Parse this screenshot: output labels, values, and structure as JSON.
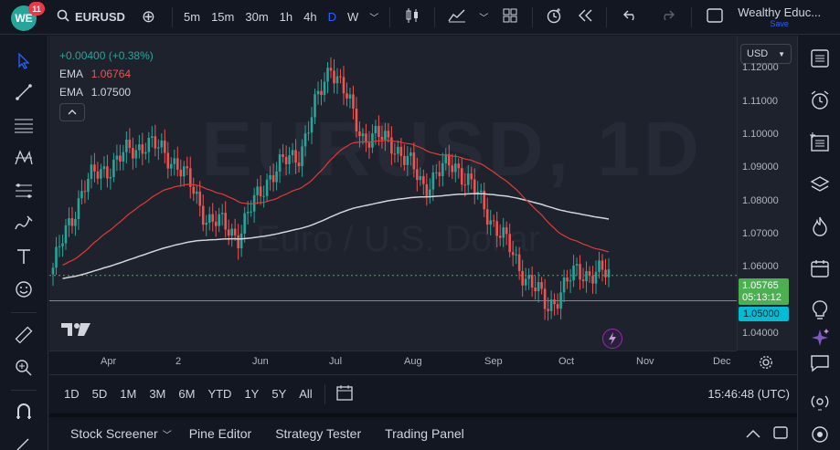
{
  "topbar": {
    "badge": "11",
    "logo": "WE",
    "symbol": "EURUSD",
    "intervals": [
      "5m",
      "15m",
      "30m",
      "1h",
      "4h",
      "D",
      "W"
    ],
    "active_interval": "D",
    "account_name": "Wealthy Educ...",
    "save_label": "Save"
  },
  "legend": {
    "change": "+0.00400 (+0.38%)",
    "ema1_label": "EMA",
    "ema1_value": "1.06764",
    "ema2_label": "EMA",
    "ema2_value": "1.07500"
  },
  "watermark": {
    "symbol": "EURUSD, 1D",
    "name": "Euro / U.S. Dollar"
  },
  "price_axis": {
    "currency": "USD",
    "labels": [
      "1.12000",
      "1.11000",
      "1.10000",
      "1.09000",
      "1.08000",
      "1.07000",
      "1.06000",
      "1.04000"
    ],
    "current_price": "1.05765",
    "countdown": "05:13:12",
    "line_price": "1.05000"
  },
  "time_axis": {
    "labels": [
      "Apr",
      "2",
      "Jun",
      "Jul",
      "Aug",
      "Sep",
      "Oct",
      "Nov",
      "Dec"
    ]
  },
  "range_bar": {
    "ranges": [
      "1D",
      "5D",
      "1M",
      "3M",
      "6M",
      "YTD",
      "1Y",
      "5Y",
      "All"
    ],
    "clock": "15:46:48 (UTC)"
  },
  "bottom_bar": {
    "tabs": [
      "Stock Screener",
      "Pine Editor",
      "Strategy Tester",
      "Trading Panel"
    ]
  },
  "colors": {
    "up": "#26a69a",
    "down": "#ef5350",
    "ema_fast": "#e53935",
    "ema_slow": "#d1d4dc",
    "accent": "#2962ff",
    "current_price_bg": "#4caf50",
    "line_price_bg": "#00bcd4"
  },
  "chart_data": {
    "type": "candlestick",
    "series": [
      {
        "name": "EMA",
        "value_label": "1.06764"
      },
      {
        "name": "EMA",
        "value_label": "1.07500"
      }
    ],
    "ylim": [
      1.035,
      1.13
    ],
    "horizontal_line": 1.05,
    "x_ticks": [
      "Apr",
      "2",
      "Jun",
      "Jul",
      "Aug",
      "Sep",
      "Oct",
      "Nov",
      "Dec"
    ],
    "close_path": [
      [
        "Mar",
        1.06
      ],
      [
        "Apr",
        1.085
      ],
      [
        "Apr-mid",
        1.092
      ],
      [
        "May-2",
        1.098
      ],
      [
        "May-mid",
        1.092
      ],
      [
        "Jun-early",
        1.075
      ],
      [
        "Jun",
        1.07
      ],
      [
        "Jun-late",
        1.088
      ],
      [
        "Jul",
        1.095
      ],
      [
        "Jul-mid",
        1.122
      ],
      [
        "Aug-early",
        1.1
      ],
      [
        "Aug",
        1.098
      ],
      [
        "Aug-late",
        1.085
      ],
      [
        "Sep",
        1.092
      ],
      [
        "Sep-mid",
        1.078
      ],
      [
        "Sep-late",
        1.062
      ],
      [
        "Oct",
        1.048
      ],
      [
        "Oct-mid",
        1.059
      ],
      [
        "Oct-last",
        1.05765
      ]
    ]
  }
}
